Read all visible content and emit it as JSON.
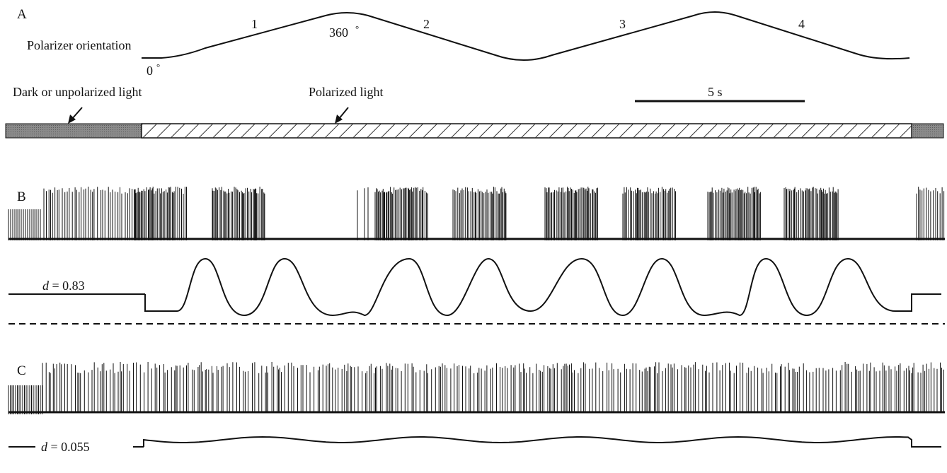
{
  "panels": {
    "a": "A",
    "b": "B",
    "c": "C"
  },
  "panel_a": {
    "polarizer_label": "Polarizer orientation",
    "angle_start": "0",
    "angle_peak": "360",
    "degree_symbol": "°",
    "segments": [
      "1",
      "2",
      "3",
      "4"
    ],
    "dark_label": "Dark or unpolarized light",
    "polarized_label": "Polarized light",
    "scale_label": "5 s"
  },
  "panel_b": {
    "d_symbol": "d",
    "d_value": "= 0.83",
    "burst_starts_s": [
      1.7,
      2.8,
      5.1,
      6.2,
      7.5,
      8.6,
      9.8,
      10.9
    ],
    "burst_duration_s": 0.75,
    "fit_peaks_s": [
      2.2,
      3.3,
      5.6,
      6.7,
      8.0,
      9.1,
      10.4,
      11.5
    ]
  },
  "panel_c": {
    "d_symbol": "d",
    "d_value": "= 0.055"
  },
  "stimulus": {
    "dark_start_s": 0,
    "polarized_start_s": 1.55,
    "polarized_end_s": 12.65,
    "dark_end_s": 13.0
  },
  "colors": {
    "ink": "#111111",
    "dark_bar": "#7a7a7a",
    "hatch": "#333333"
  }
}
